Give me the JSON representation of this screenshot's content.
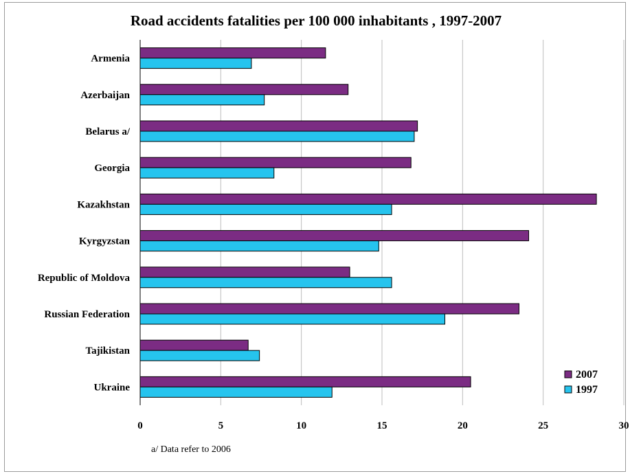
{
  "chart_data": {
    "type": "bar",
    "orientation": "horizontal",
    "title": "Road accidents fatalities per 100 000 inhabitants , 1997-2007",
    "categories": [
      "Armenia",
      "Azerbaijan",
      "Belarus a/",
      "Georgia",
      "Kazakhstan",
      "Kyrgyzstan",
      "Republic of Moldova",
      "Russian Federation",
      "Tajikistan",
      "Ukraine"
    ],
    "series": [
      {
        "name": "2007",
        "color": "#7b2c83",
        "values": [
          11.5,
          12.9,
          17.2,
          16.8,
          28.3,
          24.1,
          13.0,
          23.5,
          6.7,
          20.5
        ]
      },
      {
        "name": "1997",
        "color": "#26c4ee",
        "values": [
          6.9,
          7.7,
          17.0,
          8.3,
          15.6,
          14.8,
          15.6,
          18.9,
          7.4,
          11.9
        ]
      }
    ],
    "xlim": [
      0,
      30
    ],
    "xticks": [
      0,
      5,
      10,
      15,
      20,
      25,
      30
    ],
    "xlabel": "",
    "ylabel": "",
    "grid": true,
    "legend_position": "bottom-right",
    "footnote": "a/ Data refer to 2006"
  }
}
